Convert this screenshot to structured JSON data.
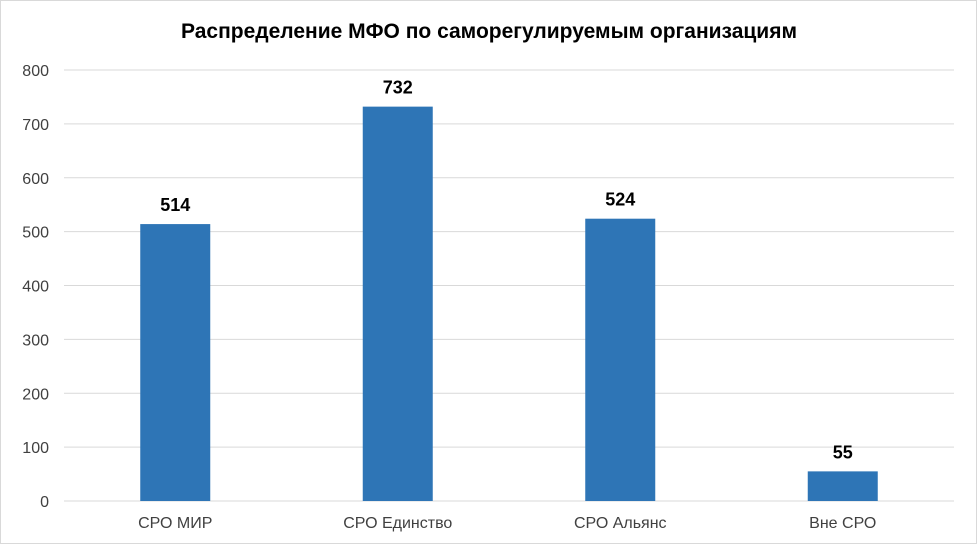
{
  "chart_data": {
    "type": "bar",
    "title": "Распределение МФО по саморегулируемым организациям",
    "categories": [
      "СРО МИР",
      "СРО Единство",
      "СРО Альянс",
      "Вне СРО"
    ],
    "values": [
      514,
      732,
      524,
      55
    ],
    "value_labels": [
      "514",
      "732",
      "524",
      "55"
    ],
    "yticks": [
      0,
      100,
      200,
      300,
      400,
      500,
      600,
      700,
      800
    ],
    "ylim": [
      0,
      800
    ],
    "grid": true,
    "legend": "none",
    "bar_color": "#2e75b6"
  }
}
